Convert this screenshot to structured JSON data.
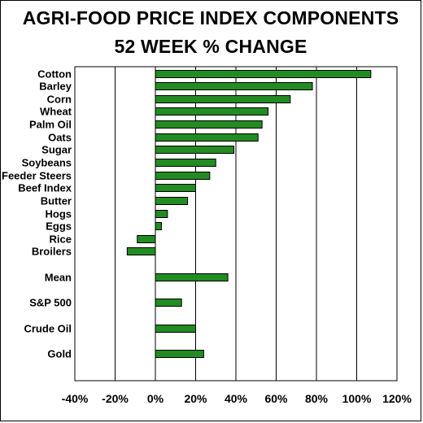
{
  "chart_data": {
    "type": "bar",
    "orientation": "horizontal",
    "title": "AGRI-FOOD PRICE INDEX COMPONENTS",
    "subtitle": "52 WEEK % CHANGE",
    "categories": [
      "Cotton",
      "Barley",
      "Corn",
      "Wheat",
      "Palm Oil",
      "Oats",
      "Sugar",
      "Soybeans",
      "Feeder Steers",
      "Beef Index",
      "Butter",
      "Hogs",
      "Eggs",
      "Rice",
      "Broilers",
      "Mean",
      "S&P 500",
      "Crude Oil",
      "Gold"
    ],
    "values": [
      107,
      78,
      67,
      56,
      53,
      51,
      39,
      30,
      27,
      20,
      16,
      6,
      3,
      -9,
      -14,
      36,
      13,
      20,
      24
    ],
    "xlim": [
      -40,
      120
    ],
    "xticks": [
      -40,
      -20,
      0,
      20,
      40,
      60,
      80,
      100,
      120
    ],
    "xtick_labels": [
      "-40%",
      "-20%",
      "0%",
      "20%",
      "40%",
      "60%",
      "80%",
      "100%",
      "120%"
    ],
    "grid": true,
    "bar_color": "#228B22"
  }
}
